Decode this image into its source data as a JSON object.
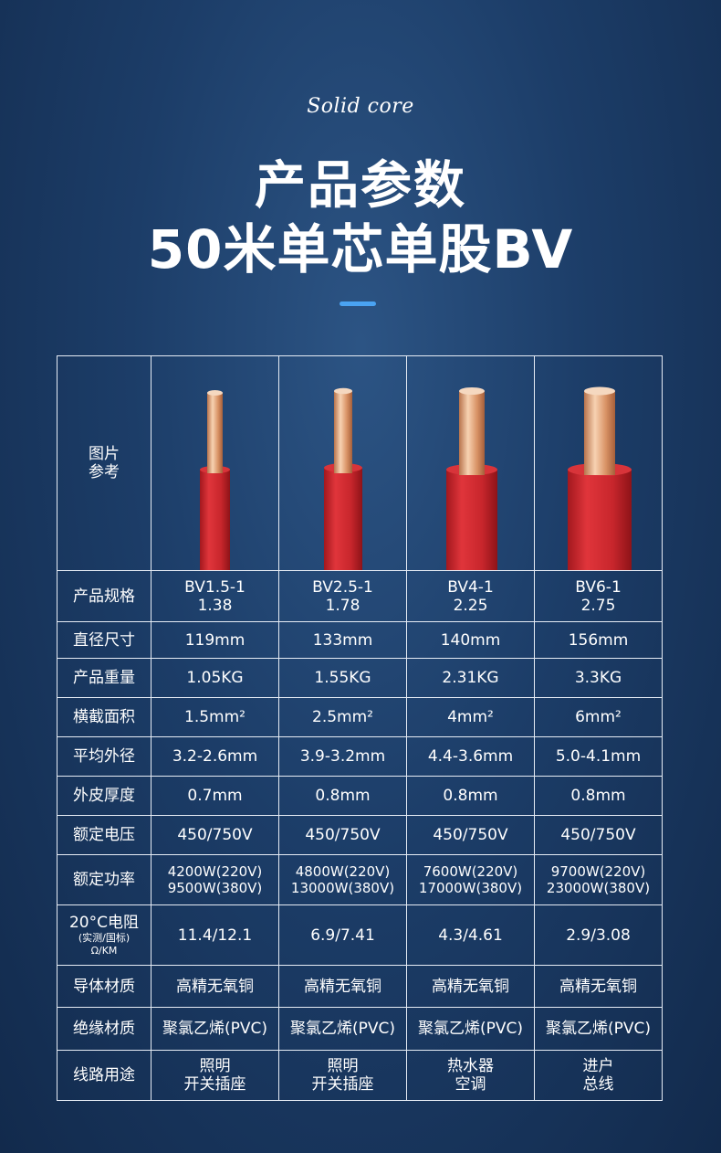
{
  "header": {
    "script_title": "Solid core",
    "title_line1": "产品参数",
    "title_line2": "50米单芯单股BV"
  },
  "table": {
    "image_row_label_line1": "图片",
    "image_row_label_line2": "参考",
    "rows": [
      {
        "label": "产品规格",
        "cells": [
          [
            "BV1.5-1",
            "1.38"
          ],
          [
            "BV2.5-1",
            "1.78"
          ],
          [
            "BV4-1",
            "2.25"
          ],
          [
            "BV6-1",
            "2.75"
          ]
        ]
      },
      {
        "label": "直径尺寸",
        "cells": [
          [
            "119mm"
          ],
          [
            "133mm"
          ],
          [
            "140mm"
          ],
          [
            "156mm"
          ]
        ]
      },
      {
        "label": "产品重量",
        "cells": [
          [
            "1.05KG"
          ],
          [
            "1.55KG"
          ],
          [
            "2.31KG"
          ],
          [
            "3.3KG"
          ]
        ]
      },
      {
        "label": "横截面积",
        "cells": [
          [
            "1.5mm²"
          ],
          [
            "2.5mm²"
          ],
          [
            "4mm²"
          ],
          [
            "6mm²"
          ]
        ]
      },
      {
        "label": "平均外径",
        "cells": [
          [
            "3.2-2.6mm"
          ],
          [
            "3.9-3.2mm"
          ],
          [
            "4.4-3.6mm"
          ],
          [
            "5.0-4.1mm"
          ]
        ]
      },
      {
        "label": "外皮厚度",
        "cells": [
          [
            "0.7mm"
          ],
          [
            "0.8mm"
          ],
          [
            "0.8mm"
          ],
          [
            "0.8mm"
          ]
        ]
      },
      {
        "label": "额定电压",
        "cells": [
          [
            "450/750V"
          ],
          [
            "450/750V"
          ],
          [
            "450/750V"
          ],
          [
            "450/750V"
          ]
        ]
      },
      {
        "label": "额定功率",
        "cells": [
          [
            "4200W(220V)",
            "9500W(380V)"
          ],
          [
            "4800W(220V)",
            "13000W(380V)"
          ],
          [
            "7600W(220V)",
            "17000W(380V)"
          ],
          [
            "9700W(220V)",
            "23000W(380V)"
          ]
        ]
      },
      {
        "label": "20°C电阻",
        "label_sub1": "(实测/国标)",
        "label_sub2": "Ω/KM",
        "cells": [
          [
            "11.4/12.1"
          ],
          [
            "6.9/7.41"
          ],
          [
            "4.3/4.61"
          ],
          [
            "2.9/3.08"
          ]
        ]
      },
      {
        "label": "导体材质",
        "cells": [
          [
            "高精无氧铜"
          ],
          [
            "高精无氧铜"
          ],
          [
            "高精无氧铜"
          ],
          [
            "高精无氧铜"
          ]
        ]
      },
      {
        "label": "绝缘材质",
        "cells": [
          [
            "聚氯乙烯(PVC)"
          ],
          [
            "聚氯乙烯(PVC)"
          ],
          [
            "聚氯乙烯(PVC)"
          ],
          [
            "聚氯乙烯(PVC)"
          ]
        ]
      },
      {
        "label": "线路用途",
        "cells": [
          [
            "照明",
            "开关插座"
          ],
          [
            "照明",
            "开关插座"
          ],
          [
            "热水器",
            "空调"
          ],
          [
            "进户",
            "总线"
          ]
        ]
      }
    ]
  },
  "colors": {
    "insulation": "#c8262c",
    "copper": "#e0a57d",
    "accent": "#4aa3f2"
  }
}
